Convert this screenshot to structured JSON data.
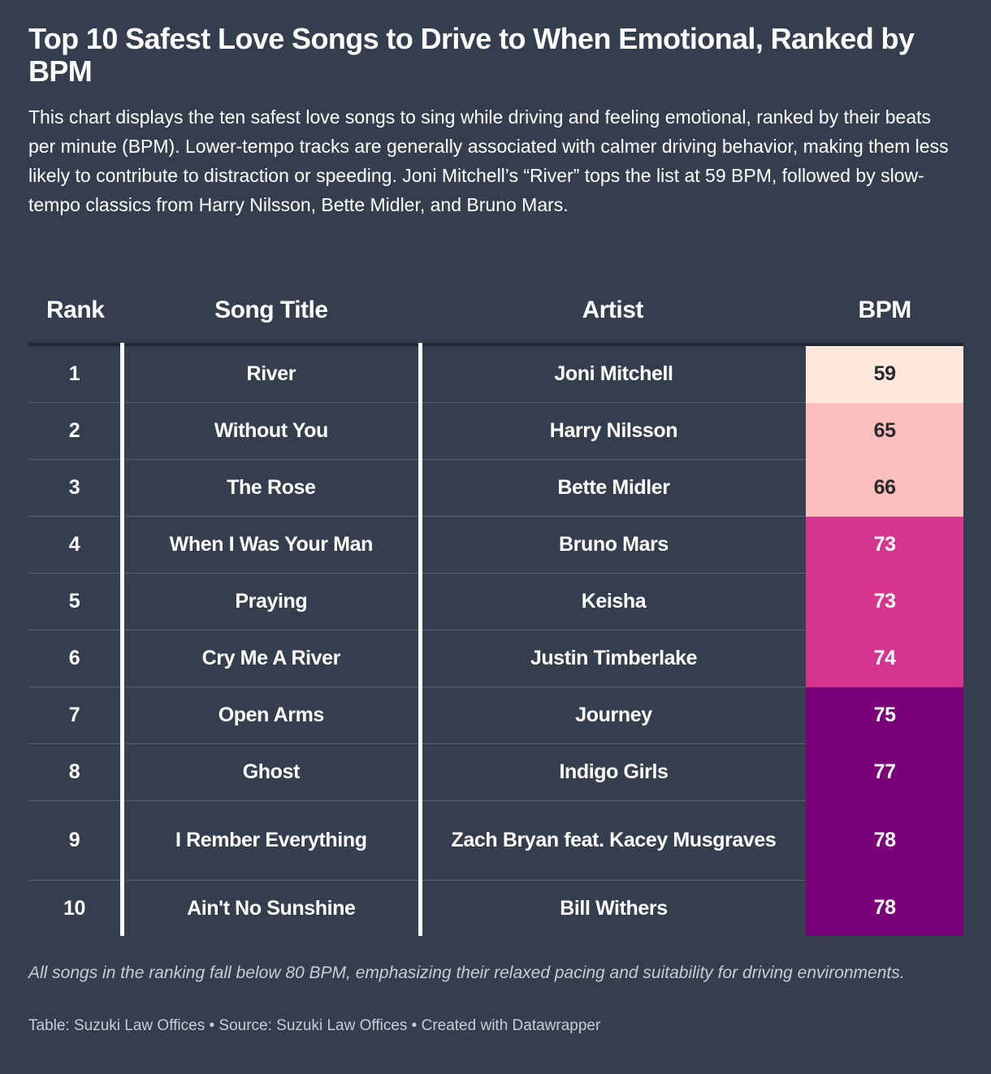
{
  "header": {
    "title": "Top 10 Safest Love Songs to Drive to When Emotional, Ranked by BPM",
    "description": "This chart displays the ten safest love songs to sing while driving and feeling emotional, ranked by their beats per minute (BPM). Lower-tempo tracks are generally associated with calmer driving behavior, making them less likely to contribute to distraction or speeding. Joni Mitchell’s “River” tops the list at 59 BPM, followed by slow-tempo classics from Harry Nilsson, Bette Midler, and Bruno Mars."
  },
  "chart_data": {
    "type": "table",
    "columns": [
      "Rank",
      "Song Title",
      "Artist",
      "BPM"
    ],
    "rows": [
      {
        "rank": "1",
        "song": "River",
        "artist": "Joni Mitchell",
        "bpm": 59,
        "color": "#ffe9df"
      },
      {
        "rank": "2",
        "song": "Without You",
        "artist": "Harry Nilsson",
        "bpm": 65,
        "color": "#fbbfbd"
      },
      {
        "rank": "3",
        "song": "The Rose",
        "artist": "Bette Midler",
        "bpm": 66,
        "color": "#fbbfbd"
      },
      {
        "rank": "4",
        "song": "When I Was Your Man",
        "artist": "Bruno Mars",
        "bpm": 73,
        "color": "#d4358e"
      },
      {
        "rank": "5",
        "song": "Praying",
        "artist": "Keisha",
        "bpm": 73,
        "color": "#d4358e"
      },
      {
        "rank": "6",
        "song": "Cry Me A River",
        "artist": "Justin Timberlake",
        "bpm": 74,
        "color": "#d4358e"
      },
      {
        "rank": "7",
        "song": "Open Arms",
        "artist": "Journey",
        "bpm": 75,
        "color": "#7a0078"
      },
      {
        "rank": "8",
        "song": "Ghost",
        "artist": "Indigo Girls",
        "bpm": 77,
        "color": "#7a0078"
      },
      {
        "rank": "9",
        "song": "I Rember Everything",
        "artist": "Zach Bryan feat. Kacey Musgraves",
        "bpm": 78,
        "color": "#7a0078"
      },
      {
        "rank": "10",
        "song": "Ain't No Sunshine",
        "artist": "Bill Withers",
        "bpm": 78,
        "color": "#7a0078"
      }
    ]
  },
  "footer": {
    "note": "All songs in the ranking fall below 80 BPM, emphasizing their relaxed pacing and suitability for driving environments.",
    "credits": "Table: Suzuki Law Offices • Source: Suzuki Law Offices • Created with Datawrapper"
  },
  "colors": {
    "background": "#343e4e",
    "text": "#ffffff",
    "bpm_dark_text": "#2a2a2a"
  }
}
